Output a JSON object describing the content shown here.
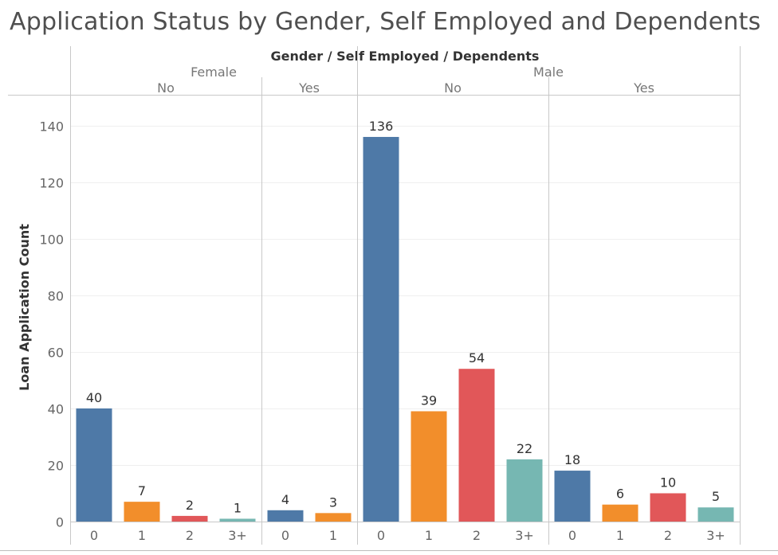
{
  "title": "Application Status by Gender, Self Employed and Dependents",
  "chart_data": {
    "type": "bar",
    "column_header": "Gender  /  Self Employed  /  Dependents",
    "ylabel": "Loan Application Count",
    "ylim": [
      0,
      145
    ],
    "yticks": [
      0,
      20,
      40,
      60,
      80,
      100,
      120,
      140
    ],
    "grid": true,
    "series_colors": {
      "0": "#4e79a7",
      "1": "#f28e2b",
      "2": "#e15759",
      "3+": "#76b7b2"
    },
    "groups": [
      {
        "gender": "Female",
        "self_employed": "No",
        "categories": [
          "0",
          "1",
          "2",
          "3+"
        ],
        "values": [
          40,
          7,
          2,
          1
        ]
      },
      {
        "gender": "Female",
        "self_employed": "Yes",
        "categories": [
          "0",
          "1"
        ],
        "values": [
          4,
          3
        ]
      },
      {
        "gender": "Male",
        "self_employed": "No",
        "categories": [
          "0",
          "1",
          "2",
          "3+"
        ],
        "values": [
          136,
          39,
          54,
          22
        ]
      },
      {
        "gender": "Male",
        "self_employed": "Yes",
        "categories": [
          "0",
          "1",
          "2",
          "3+"
        ],
        "values": [
          18,
          6,
          10,
          5
        ]
      }
    ],
    "gender_labels": [
      "Female",
      "Male"
    ]
  }
}
